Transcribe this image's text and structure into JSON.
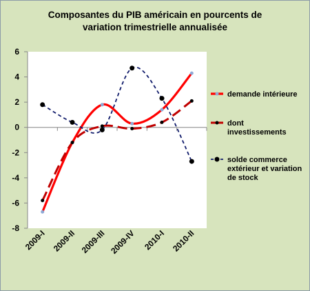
{
  "chart_data": {
    "type": "line",
    "title": [
      "Composantes du PIB américain en pourcents de",
      "variation trimestrielle annualisée"
    ],
    "categories": [
      "2009-I",
      "2009-II",
      "2009-III",
      "2009-IV",
      "2010-I",
      "2010-II"
    ],
    "ylim": [
      -8,
      6
    ],
    "yticks": [
      "-8",
      "-6",
      "-4",
      "-2",
      "0",
      "2",
      "4",
      "6"
    ],
    "grid": false,
    "legend_position": "right",
    "series": [
      {
        "name": "demande intérieure",
        "values": [
          -6.7,
          -1.2,
          1.8,
          0.3,
          1.4,
          4.3
        ],
        "color": "#ff0000",
        "dash": "solid",
        "legend_lines": [
          "demande intérieure"
        ]
      },
      {
        "name": "dont investissements",
        "values": [
          -5.8,
          -1.2,
          0.1,
          -0.1,
          0.4,
          2.1
        ],
        "color": "#c00000",
        "dash": "long-dash",
        "legend_lines": [
          "dont",
          "investissements"
        ]
      },
      {
        "name": "solde commerce extérieur et variation de stock",
        "values": [
          1.8,
          0.4,
          -0.2,
          4.7,
          2.3,
          -2.7
        ],
        "color": "#0f1a6a",
        "dash": "short-dash",
        "legend_lines": [
          "solde commerce",
          "extérieur et variation",
          "de stock"
        ]
      }
    ]
  }
}
